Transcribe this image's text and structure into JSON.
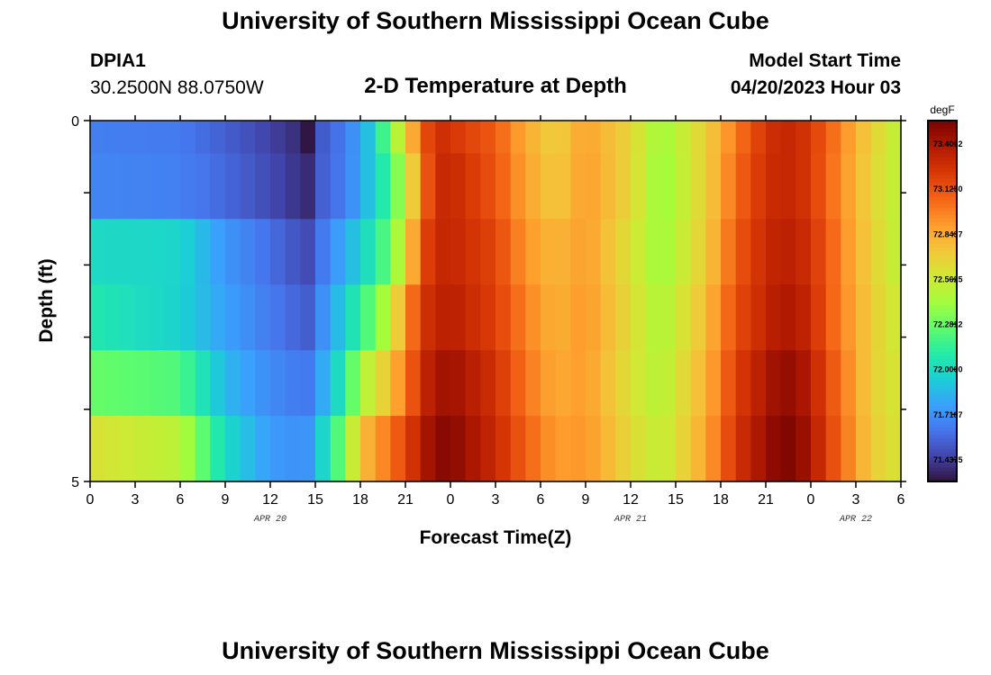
{
  "header": {
    "title": "University of Southern Mississippi Ocean Cube",
    "station_id": "DPIA1",
    "coordinates": "30.2500N  88.0750W",
    "subtitle": "2-D Temperature at Depth",
    "model_start_label": "Model Start Time",
    "model_start_value": "04/20/2023 Hour 03"
  },
  "footer": {
    "title": "University of Southern Mississippi Ocean Cube"
  },
  "colors": {
    "palette": [
      "#30123b",
      "#4145ab",
      "#4675ed",
      "#39a2fc",
      "#1bcfd4",
      "#24eca6",
      "#61fc6c",
      "#a4fc3b",
      "#d1e834",
      "#f3c63a",
      "#fe9b2d",
      "#f36315",
      "#d93806",
      "#b11901",
      "#7a0402"
    ]
  },
  "chart_data": {
    "type": "heatmap",
    "title": "2-D Temperature at Depth",
    "xlabel": "Forecast Time(Z)",
    "ylabel": "Depth (ft)",
    "x_tick_labels": [
      "0",
      "3",
      "6",
      "9",
      "12",
      "15",
      "18",
      "21",
      "0",
      "3",
      "6",
      "9",
      "12",
      "15",
      "18",
      "21",
      "0",
      "3",
      "6"
    ],
    "date_labels": [
      {
        "label": "APR 20",
        "at_tick": 4
      },
      {
        "label": "APR 21",
        "at_tick": 12
      },
      {
        "label": "APR 22",
        "at_tick": 17
      }
    ],
    "y_tick_labels": [
      "0",
      "5"
    ],
    "y_range": [
      0,
      5
    ],
    "depth_levels": 6,
    "colorbar": {
      "unit": "degF",
      "min": 71.3,
      "max": 73.55,
      "ticks": [
        "71.4375",
        "71.7187",
        "72.0000",
        "72.2812",
        "72.5625",
        "72.8437",
        "73.1250",
        "73.4062"
      ]
    },
    "anchor_hours": [
      0,
      6,
      9,
      12,
      14,
      14.6,
      15,
      17,
      18,
      19,
      20,
      21,
      22,
      23,
      24.5,
      27,
      29,
      31,
      33,
      36,
      38,
      41,
      43,
      45,
      46,
      47,
      48,
      49,
      50.5,
      52,
      54
    ],
    "rows": [
      [
        71.66,
        71.64,
        71.55,
        71.45,
        71.38,
        71.3,
        71.5,
        71.65,
        71.78,
        72.0,
        72.35,
        72.65,
        73.05,
        73.3,
        73.22,
        73.1,
        72.85,
        72.7,
        72.88,
        72.68,
        72.4,
        72.7,
        73.0,
        73.25,
        73.32,
        73.3,
        73.22,
        73.1,
        72.9,
        72.7,
        72.5
      ],
      [
        71.68,
        71.66,
        71.58,
        71.48,
        71.4,
        71.38,
        71.52,
        71.65,
        71.8,
        71.98,
        72.2,
        72.5,
        72.95,
        73.32,
        73.28,
        73.12,
        72.88,
        72.72,
        72.9,
        72.68,
        72.38,
        72.7,
        73.05,
        73.27,
        73.32,
        73.3,
        73.22,
        73.08,
        72.88,
        72.68,
        72.5
      ],
      [
        72.0,
        71.98,
        71.74,
        71.6,
        71.5,
        71.48,
        71.58,
        71.82,
        71.95,
        72.1,
        72.3,
        72.6,
        73.1,
        73.32,
        73.3,
        73.18,
        72.92,
        72.8,
        72.9,
        72.62,
        72.4,
        72.72,
        73.1,
        73.3,
        73.36,
        73.34,
        73.26,
        73.12,
        72.9,
        72.7,
        72.5
      ],
      [
        72.08,
        71.96,
        71.78,
        71.64,
        71.56,
        71.54,
        71.64,
        71.95,
        72.15,
        72.3,
        72.55,
        72.9,
        73.2,
        73.35,
        73.34,
        73.2,
        72.98,
        72.82,
        72.92,
        72.65,
        72.45,
        72.78,
        73.15,
        73.32,
        73.4,
        73.38,
        73.3,
        73.12,
        72.92,
        72.72,
        72.55
      ],
      [
        72.28,
        72.22,
        71.86,
        71.7,
        71.64,
        71.64,
        71.72,
        72.1,
        72.45,
        72.6,
        72.78,
        73.0,
        73.26,
        73.44,
        73.42,
        73.26,
        73.02,
        72.85,
        72.9,
        72.62,
        72.48,
        72.82,
        73.2,
        73.4,
        73.48,
        73.46,
        73.36,
        73.18,
        72.95,
        72.7,
        72.58
      ],
      [
        72.62,
        72.5,
        72.0,
        71.76,
        71.72,
        71.74,
        71.85,
        72.35,
        72.75,
        72.9,
        73.02,
        73.18,
        73.34,
        73.52,
        73.48,
        73.3,
        73.08,
        72.9,
        72.92,
        72.66,
        72.52,
        72.86,
        73.25,
        73.45,
        73.54,
        73.52,
        73.4,
        73.22,
        72.98,
        72.72,
        72.6
      ]
    ]
  }
}
